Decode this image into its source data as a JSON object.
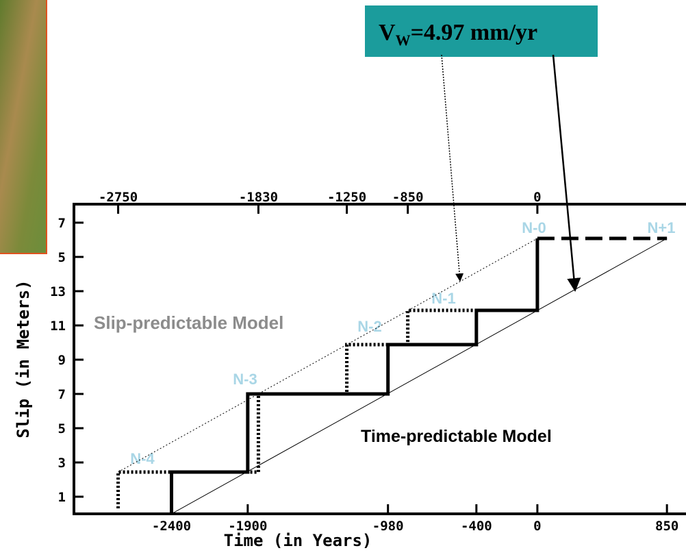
{
  "chart_data": {
    "type": "line",
    "box_label": {
      "main": "V",
      "sub": "W",
      "rest": "=4.97 mm/yr"
    },
    "x_label": "Time (in Years)",
    "y_label": "Slip (in Meters)",
    "annotations": [
      "N-0",
      "N+1",
      "N-1",
      "N-2",
      "N-3",
      "N-4",
      "Slip-predictable Model",
      "Time-predictable Model"
    ],
    "xlim": [
      -3040,
      975
    ],
    "ylim": [
      0,
      18
    ],
    "xticks": [
      -2400,
      -1900,
      -980,
      -400,
      0,
      850
    ],
    "x2ticks": [
      -2750,
      -1830,
      -1250,
      -850,
      0
    ],
    "yticks": [
      1,
      3,
      5,
      7,
      9,
      11,
      13,
      {
        "value": 15,
        "label": "5"
      },
      {
        "value": 17,
        "label": "7"
      }
    ],
    "series": [
      {
        "color": "#000000",
        "style": "solid",
        "width": 5,
        "x": [
          -2400,
          -2400,
          -1900,
          -1900,
          -980,
          -980,
          -400,
          -400,
          0,
          0
        ],
        "values": [
          0,
          2.44,
          2.44,
          7,
          7,
          9.88,
          9.88,
          11.88,
          11.88,
          16.08
        ]
      },
      {
        "color": "#000000",
        "style": "dashed",
        "width": 5,
        "x": [
          0,
          850
        ],
        "values": [
          16.08,
          16.08
        ]
      },
      {
        "color": "#000000",
        "style": "dotted",
        "width": 5,
        "x": [
          -2750,
          -2750,
          -1830,
          -1830,
          -1250,
          -1250,
          -850,
          -850,
          -400
        ],
        "values": [
          0.32,
          2.44,
          2.44,
          7,
          7,
          9.88,
          9.88,
          11.88,
          11.88
        ]
      },
      {
        "color": "#000000",
        "style": "solid",
        "width": 1,
        "x": [
          -2400,
          850
        ],
        "values": [
          0,
          16.08
        ]
      },
      {
        "color": "#000000",
        "style": "dotted",
        "width": 1,
        "x": [
          -2750,
          0
        ],
        "values": [
          2.44,
          16.08
        ]
      }
    ]
  }
}
